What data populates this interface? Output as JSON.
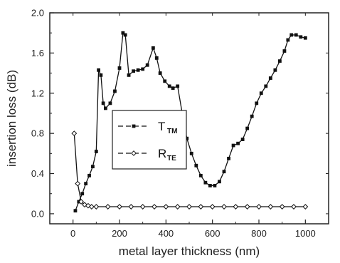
{
  "chart_data": {
    "type": "line",
    "xlabel": "metal layer thickness (nm)",
    "ylabel": "insertion loss (dB)",
    "xlim": [
      -100,
      1100
    ],
    "ylim": [
      -0.1,
      2.0
    ],
    "xticks": [
      0,
      200,
      400,
      600,
      800,
      1000
    ],
    "yticks": [
      0.0,
      0.4,
      0.8,
      1.2,
      1.6,
      2.0
    ],
    "xtick_labels": [
      "0",
      "200",
      "400",
      "600",
      "800",
      "1000"
    ],
    "ytick_labels": [
      "0.0",
      "0.4",
      "0.8",
      "1.2",
      "1.6",
      "2.0"
    ],
    "grid": false,
    "legend_position": "center-left",
    "series": [
      {
        "name": "T",
        "name_subscript": "TM",
        "marker": "square",
        "color": "#111111",
        "points": [
          [
            10,
            0.03
          ],
          [
            25,
            0.12
          ],
          [
            40,
            0.2
          ],
          [
            55,
            0.3
          ],
          [
            70,
            0.38
          ],
          [
            85,
            0.47
          ],
          [
            100,
            0.62
          ],
          [
            110,
            1.43
          ],
          [
            120,
            1.38
          ],
          [
            130,
            1.1
          ],
          [
            140,
            1.05
          ],
          [
            160,
            1.1
          ],
          [
            180,
            1.22
          ],
          [
            200,
            1.45
          ],
          [
            215,
            1.8
          ],
          [
            225,
            1.78
          ],
          [
            240,
            1.38
          ],
          [
            260,
            1.42
          ],
          [
            280,
            1.43
          ],
          [
            300,
            1.44
          ],
          [
            320,
            1.48
          ],
          [
            345,
            1.65
          ],
          [
            360,
            1.55
          ],
          [
            375,
            1.4
          ],
          [
            395,
            1.32
          ],
          [
            415,
            1.27
          ],
          [
            430,
            1.25
          ],
          [
            450,
            1.27
          ],
          [
            470,
            1.0
          ],
          [
            490,
            0.75
          ],
          [
            510,
            0.6
          ],
          [
            530,
            0.48
          ],
          [
            550,
            0.38
          ],
          [
            570,
            0.31
          ],
          [
            590,
            0.28
          ],
          [
            610,
            0.28
          ],
          [
            630,
            0.32
          ],
          [
            650,
            0.42
          ],
          [
            670,
            0.55
          ],
          [
            690,
            0.68
          ],
          [
            710,
            0.7
          ],
          [
            730,
            0.74
          ],
          [
            750,
            0.85
          ],
          [
            770,
            0.97
          ],
          [
            790,
            1.1
          ],
          [
            810,
            1.2
          ],
          [
            830,
            1.27
          ],
          [
            850,
            1.35
          ],
          [
            870,
            1.43
          ],
          [
            890,
            1.52
          ],
          [
            910,
            1.62
          ],
          [
            925,
            1.73
          ],
          [
            940,
            1.78
          ],
          [
            960,
            1.78
          ],
          [
            980,
            1.76
          ],
          [
            1000,
            1.75
          ]
        ]
      },
      {
        "name": "R",
        "name_subscript": "TE",
        "marker": "diamond-open",
        "color": "#111111",
        "points": [
          [
            5,
            0.8
          ],
          [
            20,
            0.3
          ],
          [
            35,
            0.12
          ],
          [
            50,
            0.09
          ],
          [
            65,
            0.08
          ],
          [
            80,
            0.07
          ],
          [
            100,
            0.07
          ],
          [
            150,
            0.07
          ],
          [
            200,
            0.07
          ],
          [
            250,
            0.07
          ],
          [
            300,
            0.07
          ],
          [
            350,
            0.07
          ],
          [
            400,
            0.07
          ],
          [
            450,
            0.07
          ],
          [
            500,
            0.07
          ],
          [
            550,
            0.07
          ],
          [
            600,
            0.07
          ],
          [
            650,
            0.07
          ],
          [
            700,
            0.07
          ],
          [
            750,
            0.07
          ],
          [
            800,
            0.07
          ],
          [
            850,
            0.07
          ],
          [
            900,
            0.07
          ],
          [
            950,
            0.07
          ],
          [
            1000,
            0.07
          ]
        ]
      }
    ]
  }
}
